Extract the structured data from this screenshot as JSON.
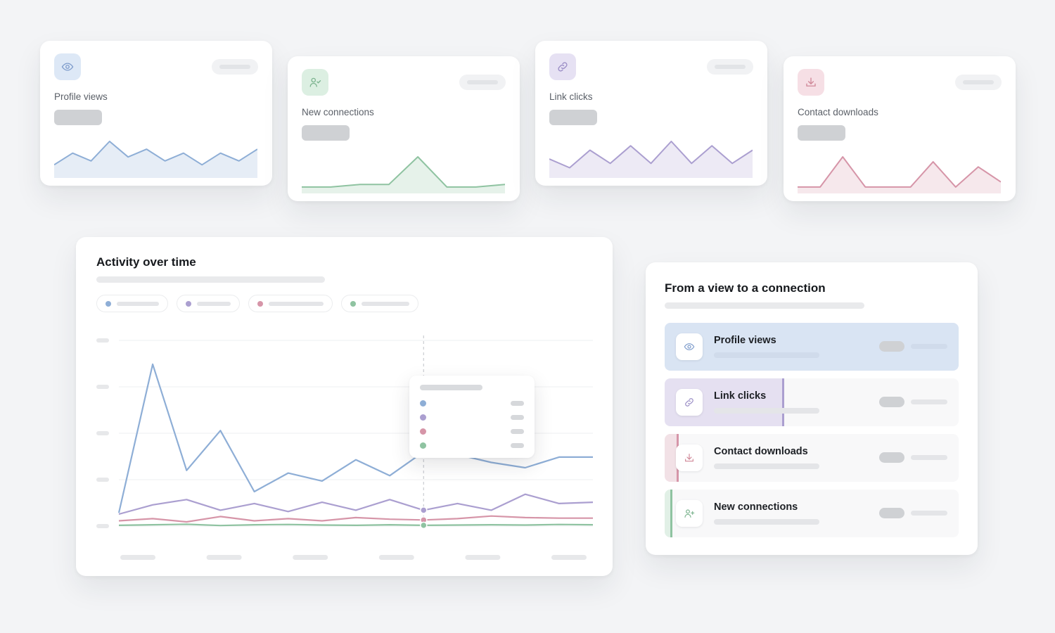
{
  "colors": {
    "views": "#8eaed6",
    "connections": "#8fc3a1",
    "clicks": "#ab9fd0",
    "downloads": "#d695a8"
  },
  "stat_cards": [
    {
      "label": "Profile views",
      "icon": "eye-icon",
      "series": [
        3,
        6,
        4,
        9,
        5,
        7,
        4,
        6,
        3,
        6,
        4,
        7
      ]
    },
    {
      "label": "New connections",
      "icon": "user-connect-icon",
      "series": [
        1,
        1,
        1.5,
        1.5,
        7,
        1,
        1,
        1.5
      ]
    },
    {
      "label": "Link clicks",
      "icon": "link-icon",
      "series": [
        4,
        2,
        6,
        3,
        7,
        3,
        8,
        3,
        7,
        3,
        6
      ]
    },
    {
      "label": "Contact downloads",
      "icon": "download-icon",
      "series": [
        1,
        1,
        7,
        1,
        1,
        1,
        6,
        1,
        5,
        2
      ]
    }
  ],
  "chart": {
    "title": "Activity over time",
    "series": [
      {
        "key": "views",
        "values": [
          0.5,
          6.1,
          2.1,
          3.6,
          1.3,
          2.0,
          1.7,
          2.5,
          1.9,
          2.8,
          2.7,
          2.4,
          2.2,
          2.6,
          2.6
        ]
      },
      {
        "key": "clicks",
        "values": [
          0.45,
          0.8,
          1.0,
          0.6,
          0.85,
          0.55,
          0.9,
          0.6,
          1.0,
          0.6,
          0.85,
          0.6,
          1.2,
          0.85,
          0.9
        ]
      },
      {
        "key": "downloads",
        "values": [
          0.2,
          0.28,
          0.16,
          0.36,
          0.2,
          0.28,
          0.2,
          0.32,
          0.26,
          0.23,
          0.28,
          0.38,
          0.32,
          0.3,
          0.3
        ]
      },
      {
        "key": "connections",
        "values": [
          0.03,
          0.05,
          0.07,
          0.02,
          0.05,
          0.06,
          0.04,
          0.03,
          0.05,
          0.03,
          0.04,
          0.05,
          0.04,
          0.06,
          0.05
        ]
      }
    ],
    "hover_index": 9,
    "ylim": [
      0,
      7
    ],
    "grid_lines": 5,
    "x_ticks": 6
  },
  "funnel": {
    "title": "From a view to a connection",
    "items": [
      {
        "label": "Profile views",
        "icon": "eye-icon",
        "key": "views",
        "fraction": 1.0
      },
      {
        "label": "Link clicks",
        "icon": "link-icon",
        "key": "clicks",
        "fraction": 0.4
      },
      {
        "label": "Contact downloads",
        "icon": "download-icon",
        "key": "downloads",
        "fraction": 0.04
      },
      {
        "label": "New connections",
        "icon": "user-add-icon",
        "key": "connections",
        "fraction": 0.02
      }
    ]
  }
}
